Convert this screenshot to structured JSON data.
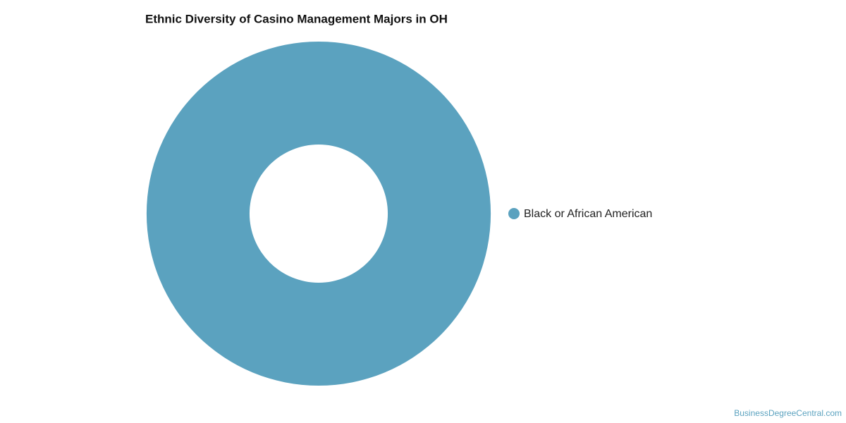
{
  "chart_data": {
    "type": "donut",
    "title": "Ethnic Diversity of Casino Management Majors in OH",
    "categories": [
      "Black or African American"
    ],
    "values": [
      100
    ],
    "colors": [
      "#5ba2bf"
    ],
    "legend": "right",
    "watermark": "BusinessDegreeCentral.com"
  }
}
